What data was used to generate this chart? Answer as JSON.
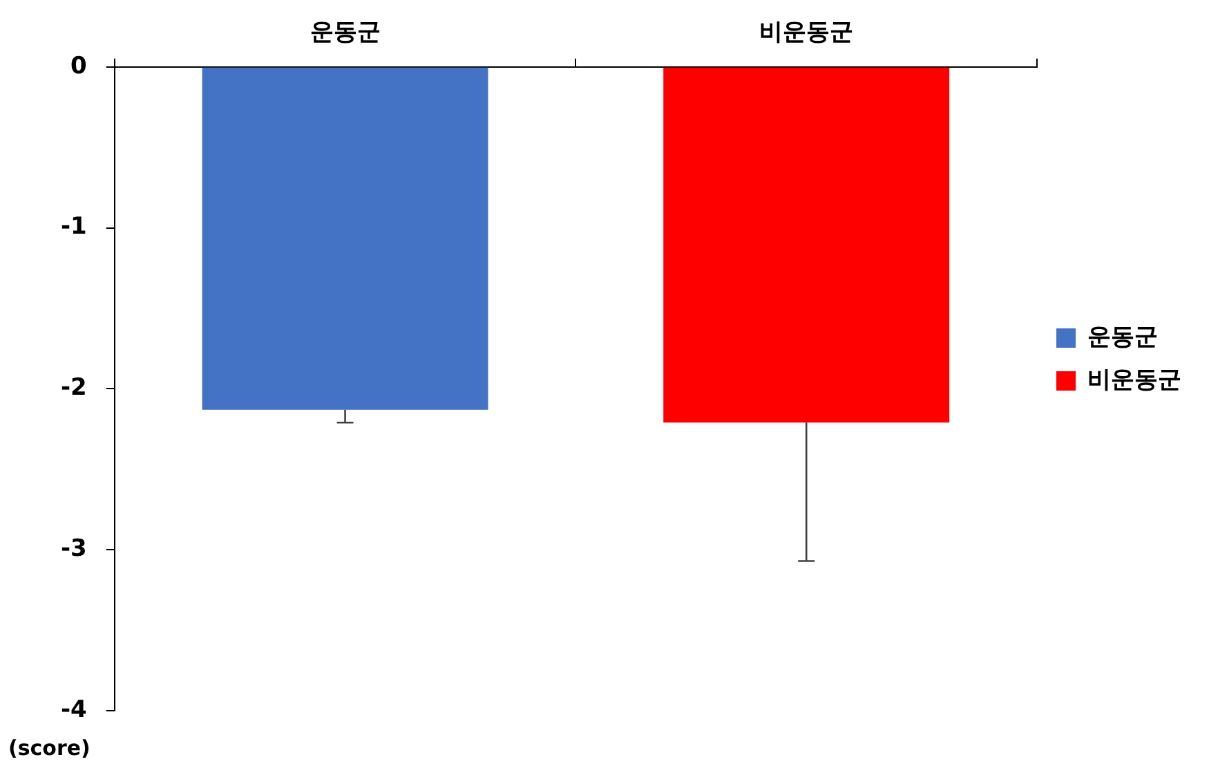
{
  "chart_data": {
    "type": "bar",
    "categories": [
      "운동군",
      "비운동군"
    ],
    "series": [
      {
        "name": "운동군",
        "color": "#4472c4",
        "values": [
          -2.13,
          null
        ],
        "errors": [
          [
            -2.21,
            -2.13
          ],
          null
        ]
      },
      {
        "name": "비운동군",
        "color": "#ff0000",
        "values": [
          null,
          -2.21
        ],
        "errors": [
          null,
          [
            -3.07,
            -2.21
          ]
        ]
      }
    ],
    "ylabel": "(score)",
    "ylim": [
      -4,
      0
    ],
    "yticks": [
      0,
      -1,
      -2,
      -3,
      -4
    ],
    "grid": false,
    "legend": "right"
  }
}
